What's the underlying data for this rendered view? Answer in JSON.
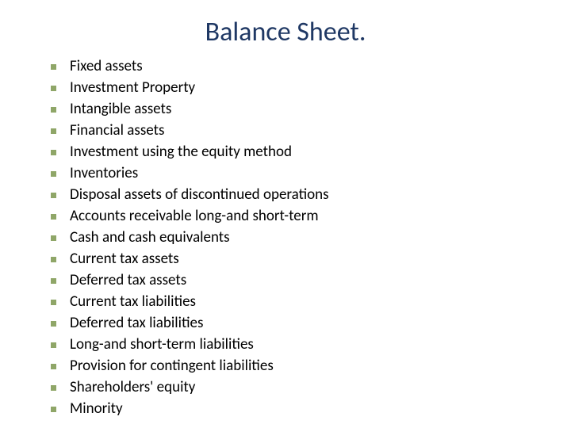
{
  "title": {
    "text": "Balance Sheet.",
    "color": "#1f3864",
    "fontsize": 34
  },
  "list": {
    "text_color": "#000000",
    "bullet_color": "#8fa668",
    "fontsize": 19,
    "items": [
      "Fixed assets",
      "Investment Property",
      "Intangible assets",
      "Financial assets",
      "Investment using the equity method",
      "Inventories",
      "Disposal assets of discontinued operations",
      "Accounts receivable long-and short-term",
      "Cash and cash equivalents",
      "Current tax assets",
      "Deferred tax assets",
      "Current tax liabilities",
      "Deferred tax liabilities",
      "Long-and short-term liabilities",
      "Provision for contingent liabilities",
      "Shareholders' equity",
      "Minority"
    ]
  }
}
